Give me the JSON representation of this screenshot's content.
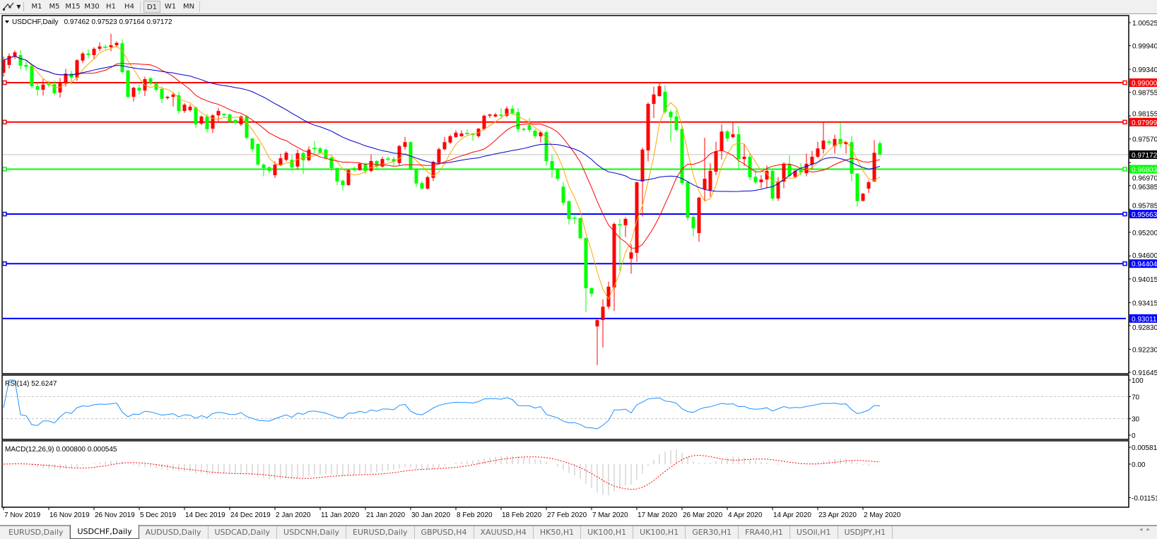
{
  "toolbar": {
    "tool_icon": "line-tools-icon",
    "timeframes": [
      "M1",
      "M5",
      "M15",
      "M30",
      "H1",
      "H4",
      "D1",
      "W1",
      "MN"
    ],
    "active_timeframe": "D1"
  },
  "chart": {
    "symbol_label": "USDCHF,Daily",
    "ohlc_label": "0.97462 0.97523 0.97164 0.97172"
  },
  "chart_data": {
    "type": "candlestick",
    "symbol": "USDCHF",
    "timeframe": "Daily",
    "ylim": [
      0.91645,
      1.00525
    ],
    "y_tick_labels": [
      "1.00525",
      "0.99940",
      "0.99340",
      "0.98755",
      "0.98155",
      "0.97570",
      "0.96970",
      "0.96385",
      "0.95785",
      "0.95200",
      "0.94600",
      "0.94015",
      "0.93415",
      "0.92830",
      "0.92230",
      "0.91645"
    ],
    "x_tick_labels": [
      "7 Nov 2019",
      "16 Nov 2019",
      "26 Nov 2019",
      "5 Dec 2019",
      "14 Dec 2019",
      "24 Dec 2019",
      "2 Jan 2020",
      "11 Jan 2020",
      "21 Jan 2020",
      "30 Jan 2020",
      "8 Feb 2020",
      "18 Feb 2020",
      "27 Feb 2020",
      "7 Mar 2020",
      "17 Mar 2020",
      "26 Mar 2020",
      "4 Apr 2020",
      "14 Apr 2020",
      "23 Apr 2020",
      "2 May 2020"
    ],
    "bar_fields": [
      "open",
      "high",
      "low",
      "close"
    ],
    "bars": [
      [
        0.9925,
        0.9966,
        0.9915,
        0.9957
      ],
      [
        0.9945,
        0.9975,
        0.9936,
        0.9968
      ],
      [
        0.9966,
        0.9982,
        0.996,
        0.9977
      ],
      [
        0.997,
        0.9982,
        0.9934,
        0.9943
      ],
      [
        0.9945,
        0.9958,
        0.993,
        0.994
      ],
      [
        0.9943,
        0.9948,
        0.9885,
        0.9891
      ],
      [
        0.9891,
        0.99,
        0.9867,
        0.9882
      ],
      [
        0.9882,
        0.991,
        0.9867,
        0.9895
      ],
      [
        0.9896,
        0.9905,
        0.9888,
        0.9895
      ],
      [
        0.9896,
        0.9905,
        0.9868,
        0.9873
      ],
      [
        0.9875,
        0.9912,
        0.9862,
        0.9898
      ],
      [
        0.9898,
        0.9935,
        0.989,
        0.9923
      ],
      [
        0.9923,
        0.993,
        0.9895,
        0.9913
      ],
      [
        0.9913,
        0.996,
        0.9905,
        0.9957
      ],
      [
        0.9956,
        0.9978,
        0.995,
        0.9974
      ],
      [
        0.9974,
        0.9985,
        0.9962,
        0.997
      ],
      [
        0.997,
        0.999,
        0.996,
        0.9986
      ],
      [
        0.9986,
        1.0002,
        0.998,
        0.9992
      ],
      [
        0.999,
        0.9997,
        0.9985,
        0.999
      ],
      [
        0.999,
        1.0024,
        0.998,
        0.9995
      ],
      [
        0.9995,
        1.0005,
        0.999,
        1.0001
      ],
      [
        1.0,
        1.001,
        0.9922,
        0.9927
      ],
      [
        0.9931,
        0.9932,
        0.986,
        0.9864
      ],
      [
        0.9864,
        0.989,
        0.9852,
        0.9887
      ],
      [
        0.9887,
        0.9895,
        0.987,
        0.988
      ],
      [
        0.988,
        0.9915,
        0.9866,
        0.9909
      ],
      [
        0.9911,
        0.9915,
        0.9894,
        0.99
      ],
      [
        0.9898,
        0.9903,
        0.9876,
        0.9882
      ],
      [
        0.9884,
        0.989,
        0.9848,
        0.9859
      ],
      [
        0.9861,
        0.9867,
        0.9857,
        0.9864
      ],
      [
        0.9864,
        0.9874,
        0.984,
        0.987
      ],
      [
        0.9868,
        0.9877,
        0.982,
        0.9828
      ],
      [
        0.9828,
        0.9848,
        0.9823,
        0.9844
      ],
      [
        0.983,
        0.9845,
        0.9826,
        0.9839
      ],
      [
        0.9837,
        0.984,
        0.9785,
        0.9794
      ],
      [
        0.9796,
        0.9817,
        0.9792,
        0.9814
      ],
      [
        0.9814,
        0.982,
        0.9774,
        0.9782
      ],
      [
        0.9783,
        0.982,
        0.9772,
        0.9817
      ],
      [
        0.9817,
        0.9835,
        0.98,
        0.9828
      ],
      [
        0.9819,
        0.9823,
        0.9813,
        0.9819
      ],
      [
        0.9819,
        0.9822,
        0.9798,
        0.9801
      ],
      [
        0.9805,
        0.9808,
        0.9794,
        0.9798
      ],
      [
        0.9794,
        0.9817,
        0.979,
        0.9814
      ],
      [
        0.9814,
        0.9818,
        0.9756,
        0.976
      ],
      [
        0.9758,
        0.976,
        0.9725,
        0.9731
      ],
      [
        0.9744,
        0.9746,
        0.9688,
        0.9692
      ],
      [
        0.9692,
        0.9695,
        0.9662,
        0.9683
      ],
      [
        0.9685,
        0.9688,
        0.967,
        0.9676
      ],
      [
        0.9665,
        0.97,
        0.9658,
        0.9692
      ],
      [
        0.969,
        0.972,
        0.9688,
        0.9708
      ],
      [
        0.9704,
        0.9726,
        0.97,
        0.9722
      ],
      [
        0.9704,
        0.9716,
        0.9675,
        0.9685
      ],
      [
        0.9687,
        0.973,
        0.968,
        0.9721
      ],
      [
        0.9721,
        0.9724,
        0.9668,
        0.9703
      ],
      [
        0.9703,
        0.9738,
        0.97,
        0.973
      ],
      [
        0.9733,
        0.9752,
        0.972,
        0.9733
      ],
      [
        0.9733,
        0.9737,
        0.972,
        0.9722
      ],
      [
        0.973,
        0.9733,
        0.9705,
        0.9708
      ],
      [
        0.971,
        0.9712,
        0.9675,
        0.9683
      ],
      [
        0.9683,
        0.9685,
        0.964,
        0.9649
      ],
      [
        0.9651,
        0.9654,
        0.9626,
        0.964
      ],
      [
        0.964,
        0.968,
        0.9638,
        0.9678
      ],
      [
        0.9683,
        0.9687,
        0.9675,
        0.9678
      ],
      [
        0.9678,
        0.9697,
        0.9676,
        0.9694
      ],
      [
        0.9694,
        0.9697,
        0.9668,
        0.9676
      ],
      [
        0.9676,
        0.9718,
        0.9672,
        0.9701
      ],
      [
        0.9701,
        0.9703,
        0.968,
        0.9687
      ],
      [
        0.9687,
        0.9712,
        0.9684,
        0.9706
      ],
      [
        0.9706,
        0.9712,
        0.97,
        0.9706
      ],
      [
        0.9706,
        0.9712,
        0.969,
        0.9699
      ],
      [
        0.9696,
        0.9742,
        0.969,
        0.9739
      ],
      [
        0.9737,
        0.9762,
        0.973,
        0.9749
      ],
      [
        0.9749,
        0.9752,
        0.9678,
        0.9681
      ],
      [
        0.9681,
        0.9683,
        0.9635,
        0.9644
      ],
      [
        0.9645,
        0.965,
        0.9628,
        0.9631
      ],
      [
        0.9631,
        0.9664,
        0.9628,
        0.966
      ],
      [
        0.9658,
        0.9702,
        0.965,
        0.9699
      ],
      [
        0.9697,
        0.9735,
        0.9692,
        0.9731
      ],
      [
        0.9731,
        0.9762,
        0.9728,
        0.9749
      ],
      [
        0.9748,
        0.9768,
        0.9744,
        0.9764
      ],
      [
        0.9762,
        0.9779,
        0.976,
        0.9773
      ],
      [
        0.9764,
        0.9779,
        0.9762,
        0.9771
      ],
      [
        0.9771,
        0.9781,
        0.9768,
        0.9771
      ],
      [
        0.9771,
        0.9772,
        0.9752,
        0.9767
      ],
      [
        0.9764,
        0.9785,
        0.976,
        0.9783
      ],
      [
        0.9782,
        0.9819,
        0.9779,
        0.9816
      ],
      [
        0.9816,
        0.9821,
        0.981,
        0.9819
      ],
      [
        0.9814,
        0.9823,
        0.9812,
        0.9819
      ],
      [
        0.9819,
        0.9835,
        0.9808,
        0.9816
      ],
      [
        0.9816,
        0.984,
        0.9812,
        0.9834
      ],
      [
        0.9834,
        0.9842,
        0.9818,
        0.9823
      ],
      [
        0.9825,
        0.9835,
        0.9775,
        0.9782
      ],
      [
        0.9783,
        0.9786,
        0.9776,
        0.978
      ],
      [
        0.9792,
        0.981,
        0.9774,
        0.978
      ],
      [
        0.9778,
        0.9782,
        0.9758,
        0.9764
      ],
      [
        0.9764,
        0.9778,
        0.9748,
        0.9774
      ],
      [
        0.9774,
        0.9778,
        0.969,
        0.9701
      ],
      [
        0.9701,
        0.9718,
        0.9658,
        0.9679
      ],
      [
        0.9679,
        0.9683,
        0.965,
        0.9656
      ],
      [
        0.9636,
        0.9648,
        0.9588,
        0.9595
      ],
      [
        0.9599,
        0.9601,
        0.954,
        0.9554
      ],
      [
        0.9556,
        0.9566,
        0.9542,
        0.9556
      ],
      [
        0.9556,
        0.9558,
        0.9503,
        0.9505
      ],
      [
        0.9505,
        0.9507,
        0.9317,
        0.9378
      ],
      [
        0.9378,
        0.938,
        0.9356,
        0.9364
      ],
      [
        0.9281,
        0.93,
        0.9183,
        0.9297
      ],
      [
        0.9297,
        0.935,
        0.9227,
        0.9331
      ],
      [
        0.9331,
        0.9395,
        0.9325,
        0.9382
      ],
      [
        0.938,
        0.9545,
        0.932,
        0.9541
      ],
      [
        0.9539,
        0.9554,
        0.9423,
        0.9539
      ],
      [
        0.9538,
        0.9558,
        0.9508,
        0.9554
      ],
      [
        0.9453,
        0.949,
        0.9415,
        0.9469
      ],
      [
        0.9468,
        0.9648,
        0.9445,
        0.9647
      ],
      [
        0.9649,
        0.9735,
        0.956,
        0.973
      ],
      [
        0.9728,
        0.985,
        0.97,
        0.9846
      ],
      [
        0.9846,
        0.989,
        0.981,
        0.987
      ],
      [
        0.9866,
        0.9898,
        0.9864,
        0.9891
      ],
      [
        0.9877,
        0.9893,
        0.982,
        0.9826
      ],
      [
        0.9826,
        0.9831,
        0.975,
        0.9812
      ],
      [
        0.9814,
        0.983,
        0.9775,
        0.978
      ],
      [
        0.9782,
        0.979,
        0.964,
        0.9645
      ],
      [
        0.9647,
        0.965,
        0.955,
        0.9557
      ],
      [
        0.9559,
        0.9563,
        0.951,
        0.953
      ],
      [
        0.9518,
        0.961,
        0.9496,
        0.9608
      ],
      [
        0.9629,
        0.976,
        0.96,
        0.9656
      ],
      [
        0.9627,
        0.9695,
        0.961,
        0.9676
      ],
      [
        0.9674,
        0.975,
        0.9665,
        0.9726
      ],
      [
        0.9726,
        0.9794,
        0.9705,
        0.9776
      ],
      [
        0.9776,
        0.978,
        0.975,
        0.9758
      ],
      [
        0.9762,
        0.9798,
        0.9758,
        0.9769
      ],
      [
        0.9769,
        0.979,
        0.968,
        0.9706
      ],
      [
        0.9706,
        0.9745,
        0.9688,
        0.9712
      ],
      [
        0.9712,
        0.9722,
        0.9652,
        0.966
      ],
      [
        0.9661,
        0.9678,
        0.9642,
        0.9647
      ],
      [
        0.9647,
        0.9665,
        0.9632,
        0.9654
      ],
      [
        0.9654,
        0.969,
        0.9632,
        0.9676
      ],
      [
        0.9676,
        0.968,
        0.96,
        0.9606
      ],
      [
        0.9606,
        0.966,
        0.96,
        0.9649
      ],
      [
        0.9649,
        0.9698,
        0.9632,
        0.9694
      ],
      [
        0.9694,
        0.9715,
        0.966,
        0.9663
      ],
      [
        0.9661,
        0.968,
        0.9658,
        0.9676
      ],
      [
        0.9678,
        0.9695,
        0.9665,
        0.9672
      ],
      [
        0.967,
        0.972,
        0.9662,
        0.9694
      ],
      [
        0.9692,
        0.9727,
        0.968,
        0.9712
      ],
      [
        0.9712,
        0.975,
        0.9708,
        0.9733
      ],
      [
        0.9731,
        0.9799,
        0.972,
        0.9753
      ],
      [
        0.9749,
        0.9756,
        0.9742,
        0.9749
      ],
      [
        0.9739,
        0.9768,
        0.972,
        0.9757
      ],
      [
        0.9757,
        0.9799,
        0.9735,
        0.9744
      ],
      [
        0.9744,
        0.9752,
        0.972,
        0.9749
      ],
      [
        0.9749,
        0.9765,
        0.965,
        0.9669
      ],
      [
        0.9669,
        0.967,
        0.9585,
        0.9599
      ],
      [
        0.96,
        0.962,
        0.9598,
        0.9618
      ],
      [
        0.9631,
        0.9652,
        0.962,
        0.9647
      ],
      [
        0.9649,
        0.9754,
        0.9648,
        0.9722
      ],
      [
        0.97462,
        0.97523,
        0.97164,
        0.97172
      ]
    ],
    "current_price": {
      "value": 0.97172,
      "label": "0.97172"
    },
    "horizontal_lines": [
      {
        "value": 0.99,
        "label": "0.99000",
        "color": "#ff0000",
        "markers": true
      },
      {
        "value": 0.97999,
        "label": "0.97999",
        "color": "#ff0000",
        "markers": true
      },
      {
        "value": 0.96803,
        "label": "0.96803",
        "color": "#00ff00",
        "markers": true
      },
      {
        "value": 0.95663,
        "label": "0.95663",
        "color": "#0000ff",
        "markers": true
      },
      {
        "value": 0.94404,
        "label": "0.94404",
        "color": "#0000ff",
        "markers": true
      },
      {
        "value": 0.93011,
        "label": "0.93011",
        "color": "#0000ff",
        "markers": false
      }
    ],
    "colors": {
      "bull_candle": "#ff0000",
      "bear_candle": "#00ff00",
      "ma_fast": "#ffa500",
      "ma_medium": "#ff0000",
      "ma_slow": "#0000cd",
      "current_price_line": "#c0c0c0",
      "current_price_label_bg": "#000000"
    },
    "grid": false,
    "rsi": {
      "label": "RSI(14) 52.6247",
      "axis_labels": [
        "100",
        "70",
        "30",
        "0"
      ],
      "axis_values": [
        100,
        70,
        30,
        0
      ],
      "levels": [
        70,
        30
      ],
      "color": "#1e90ff"
    },
    "macd": {
      "label": "MACD(12,26,9) 0.000800 0.000545",
      "axis_labels": [
        "0.005818",
        "0.00",
        "-0.01151"
      ],
      "axis_values": [
        0.005818,
        0,
        -0.01151
      ],
      "histogram_color": "#c0c0c0",
      "signal_color": "#ff0000"
    }
  },
  "tabs": [
    "EURUSD,Daily",
    "USDCHF,Daily",
    "AUDUSD,Daily",
    "USDCAD,Daily",
    "USDCNH,Daily",
    "EURUSD,Daily",
    "GBPUSD,H4",
    "XAUUSD,H4",
    "HK50,H1",
    "UK100,H1",
    "UK100,H1",
    "GER30,H1",
    "FRA40,H1",
    "USOil,H1",
    "USDJPY,H1"
  ],
  "active_tab": "USDCHF,Daily",
  "tab_scroll": {
    "left": "◂",
    "right": "▸"
  }
}
